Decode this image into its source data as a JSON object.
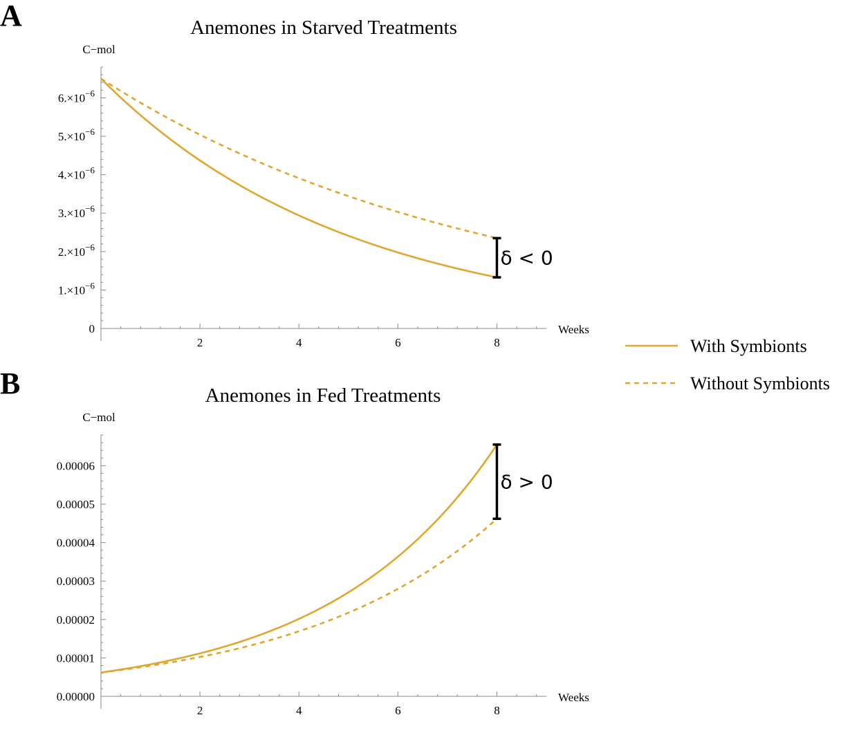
{
  "chart_data": [
    {
      "type": "line",
      "panel_label": "A",
      "title": "Anemones in Starved Treatments",
      "ylabel": "C−mol",
      "xlabel": "Weeks",
      "xlim": [
        0,
        9
      ],
      "ylim": [
        0,
        6.8e-06
      ],
      "x_ticks": [
        2,
        4,
        6,
        8
      ],
      "x_tick_labels": [
        "2",
        "4",
        "6",
        "8"
      ],
      "y_ticks": [
        0,
        1e-06,
        2e-06,
        3e-06,
        4e-06,
        5e-06,
        6e-06
      ],
      "y_tick_labels": [
        {
          "mantissa": "0",
          "exp": ""
        },
        {
          "mantissa": "1.×10",
          "exp": "−6"
        },
        {
          "mantissa": "2.×10",
          "exp": "−6"
        },
        {
          "mantissa": "3.×10",
          "exp": "−6"
        },
        {
          "mantissa": "4.×10",
          "exp": "−6"
        },
        {
          "mantissa": "5.×10",
          "exp": "−6"
        },
        {
          "mantissa": "6.×10",
          "exp": "−6"
        }
      ],
      "series": [
        {
          "name": "With Symbionts",
          "style": "solid",
          "x": [
            0,
            8
          ],
          "y0": 6.5e-06,
          "y1": 1.33e-06,
          "model": "exponential"
        },
        {
          "name": "Without Symbionts",
          "style": "dashed",
          "x": [
            0,
            8
          ],
          "y0": 6.5e-06,
          "y1": 2.35e-06,
          "model": "exponential"
        }
      ],
      "annotation": {
        "text": "δ < 0",
        "x": 8,
        "from": 1.33e-06,
        "to": 2.35e-06
      }
    },
    {
      "type": "line",
      "panel_label": "B",
      "title": "Anemones in Fed Treatments",
      "ylabel": "C−mol",
      "xlabel": "Weeks",
      "xlim": [
        0,
        9
      ],
      "ylim": [
        0,
        6.8e-05
      ],
      "x_ticks": [
        2,
        4,
        6,
        8
      ],
      "x_tick_labels": [
        "2",
        "4",
        "6",
        "8"
      ],
      "y_ticks": [
        0,
        1e-05,
        2e-05,
        3e-05,
        4e-05,
        5e-05,
        6e-05
      ],
      "y_tick_labels": [
        {
          "mantissa": "0.00000",
          "exp": ""
        },
        {
          "mantissa": "0.00001",
          "exp": ""
        },
        {
          "mantissa": "0.00002",
          "exp": ""
        },
        {
          "mantissa": "0.00003",
          "exp": ""
        },
        {
          "mantissa": "0.00004",
          "exp": ""
        },
        {
          "mantissa": "0.00005",
          "exp": ""
        },
        {
          "mantissa": "0.00006",
          "exp": ""
        }
      ],
      "series": [
        {
          "name": "With Symbionts",
          "style": "solid",
          "x": [
            0,
            8
          ],
          "y0": 6.2e-06,
          "y1": 6.55e-05,
          "model": "exponential"
        },
        {
          "name": "Without Symbionts",
          "style": "dashed",
          "x": [
            0,
            8
          ],
          "y0": 6.2e-06,
          "y1": 4.62e-05,
          "model": "exponential"
        }
      ],
      "annotation": {
        "text": "δ > 0",
        "x": 8,
        "from": 4.62e-05,
        "to": 6.55e-05
      }
    }
  ],
  "legend": {
    "placement": "right",
    "items": [
      {
        "label": "With Symbionts",
        "style": "solid"
      },
      {
        "label": "Without Symbionts",
        "style": "dashed"
      }
    ]
  },
  "colors": {
    "series": "#E0A62E",
    "axis": "#888888",
    "text": "#000000",
    "annotation": "#000000"
  }
}
